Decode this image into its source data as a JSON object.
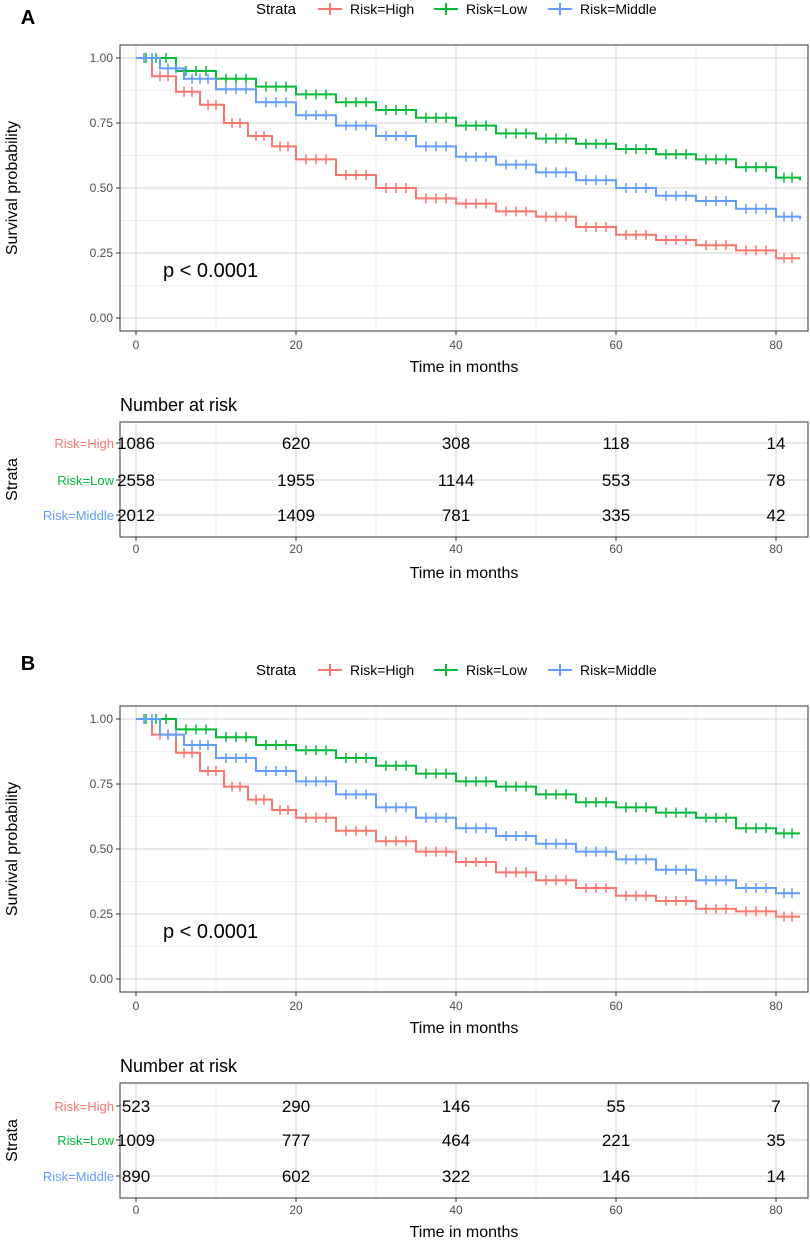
{
  "chart_data": [
    {
      "type": "line",
      "panel_label": "A",
      "legend": {
        "title": "Strata",
        "position": "top"
      },
      "xlabel": "Time in months",
      "ylabel": "Survival probability",
      "xticks": [
        0,
        20,
        40,
        60,
        80
      ],
      "yticks": [
        "0.00",
        "0.25",
        "0.50",
        "0.75",
        "1.00"
      ],
      "xlim": [
        -2,
        84
      ],
      "ylim": [
        -0.05,
        1.05
      ],
      "annotation": "p < 0.0001",
      "series": [
        {
          "name": "Risk=High",
          "color": "#F8766D",
          "x": [
            0,
            2,
            5,
            8,
            11,
            14,
            17,
            20,
            25,
            30,
            35,
            40,
            45,
            50,
            55,
            60,
            65,
            70,
            75,
            80,
            83
          ],
          "y": [
            1.0,
            0.93,
            0.87,
            0.82,
            0.75,
            0.7,
            0.66,
            0.61,
            0.55,
            0.5,
            0.46,
            0.44,
            0.41,
            0.39,
            0.35,
            0.32,
            0.3,
            0.28,
            0.26,
            0.23,
            0.23
          ]
        },
        {
          "name": "Risk=Low",
          "color": "#00BA38",
          "x": [
            0,
            5,
            10,
            15,
            20,
            25,
            30,
            35,
            40,
            45,
            50,
            55,
            60,
            65,
            70,
            75,
            80,
            83
          ],
          "y": [
            1.0,
            0.95,
            0.92,
            0.89,
            0.86,
            0.83,
            0.8,
            0.77,
            0.74,
            0.71,
            0.69,
            0.67,
            0.65,
            0.63,
            0.61,
            0.58,
            0.54,
            0.53
          ]
        },
        {
          "name": "Risk=Middle",
          "color": "#619CFF",
          "x": [
            0,
            3,
            6,
            10,
            15,
            20,
            25,
            30,
            35,
            40,
            45,
            50,
            55,
            60,
            65,
            70,
            75,
            80,
            83
          ],
          "y": [
            1.0,
            0.96,
            0.92,
            0.88,
            0.83,
            0.78,
            0.74,
            0.7,
            0.66,
            0.62,
            0.59,
            0.56,
            0.53,
            0.5,
            0.47,
            0.45,
            0.42,
            0.39,
            0.38
          ]
        }
      ],
      "risk_table": {
        "title": "Number at risk",
        "ylabel": "Strata",
        "xlabel": "Time in months",
        "times": [
          0,
          20,
          40,
          60,
          80
        ],
        "rows": [
          {
            "label": "Risk=High",
            "color": "#F8766D",
            "values": [
              "1086",
              "620",
              "308",
              "118",
              "14"
            ]
          },
          {
            "label": "Risk=Low",
            "color": "#00BA38",
            "values": [
              "2558",
              "1955",
              "1144",
              "553",
              "78"
            ]
          },
          {
            "label": "Risk=Middle",
            "color": "#619CFF",
            "values": [
              "2012",
              "1409",
              "781",
              "335",
              "42"
            ]
          }
        ]
      }
    },
    {
      "type": "line",
      "panel_label": "B",
      "legend": {
        "title": "Strata",
        "position": "top"
      },
      "xlabel": "Time in months",
      "ylabel": "Survival probability",
      "xticks": [
        0,
        20,
        40,
        60,
        80
      ],
      "yticks": [
        "0.00",
        "0.25",
        "0.50",
        "0.75",
        "1.00"
      ],
      "xlim": [
        -2,
        84
      ],
      "ylim": [
        -0.05,
        1.05
      ],
      "annotation": "p < 0.0001",
      "series": [
        {
          "name": "Risk=High",
          "color": "#F8766D",
          "x": [
            0,
            2,
            5,
            8,
            11,
            14,
            17,
            20,
            25,
            30,
            35,
            40,
            45,
            50,
            55,
            60,
            65,
            70,
            75,
            80,
            83
          ],
          "y": [
            1.0,
            0.94,
            0.87,
            0.8,
            0.74,
            0.69,
            0.65,
            0.62,
            0.57,
            0.53,
            0.49,
            0.45,
            0.41,
            0.38,
            0.35,
            0.32,
            0.3,
            0.27,
            0.26,
            0.24,
            0.24
          ]
        },
        {
          "name": "Risk=Low",
          "color": "#00BA38",
          "x": [
            0,
            5,
            10,
            15,
            20,
            25,
            30,
            35,
            40,
            45,
            50,
            55,
            60,
            65,
            70,
            75,
            80,
            83
          ],
          "y": [
            1.0,
            0.96,
            0.93,
            0.9,
            0.88,
            0.85,
            0.82,
            0.79,
            0.76,
            0.74,
            0.71,
            0.68,
            0.66,
            0.64,
            0.62,
            0.58,
            0.56,
            0.56
          ]
        },
        {
          "name": "Risk=Middle",
          "color": "#619CFF",
          "x": [
            0,
            3,
            6,
            10,
            15,
            20,
            25,
            30,
            35,
            40,
            45,
            50,
            55,
            60,
            65,
            70,
            75,
            80,
            83
          ],
          "y": [
            1.0,
            0.94,
            0.9,
            0.85,
            0.8,
            0.76,
            0.71,
            0.66,
            0.62,
            0.58,
            0.55,
            0.52,
            0.49,
            0.46,
            0.42,
            0.38,
            0.35,
            0.33,
            0.33
          ]
        }
      ],
      "risk_table": {
        "title": "Number at risk",
        "ylabel": "Strata",
        "xlabel": "Time in months",
        "times": [
          0,
          20,
          40,
          60,
          80
        ],
        "rows": [
          {
            "label": "Risk=High",
            "color": "#F8766D",
            "values": [
              "523",
              "290",
              "146",
              "55",
              "7"
            ]
          },
          {
            "label": "Risk=Low",
            "color": "#00BA38",
            "values": [
              "1009",
              "777",
              "464",
              "221",
              "35"
            ]
          },
          {
            "label": "Risk=Middle",
            "color": "#619CFF",
            "values": [
              "890",
              "602",
              "322",
              "146",
              "14"
            ]
          }
        ]
      }
    }
  ]
}
